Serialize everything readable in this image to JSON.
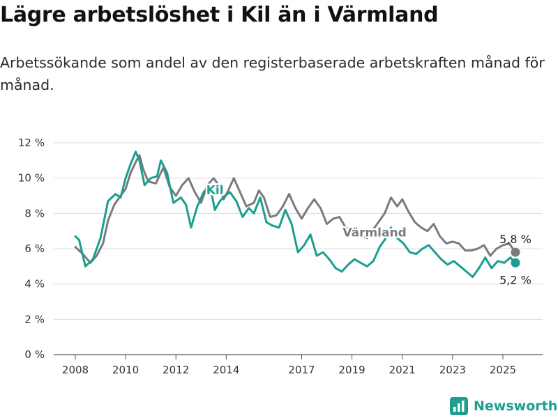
{
  "header": {
    "title": "Lägre arbetslöshet i Kil än i Värmland",
    "subtitle": "Arbetssökande som andel av den registerbaserade arbetskraften månad för månad."
  },
  "brand": {
    "name": "Newsworthy",
    "icon": "newsworthy-logo-icon",
    "color": "#1e9e8f"
  },
  "chart_data": {
    "type": "line",
    "title": "",
    "xlabel": "",
    "ylabel": "",
    "ylim": [
      0,
      12
    ],
    "yticks": [
      0,
      2,
      4,
      6,
      8,
      10,
      12
    ],
    "ytick_labels": [
      "0 %",
      "2 %",
      "4 %",
      "6 %",
      "8 %",
      "10 %",
      "12 %"
    ],
    "xlim": [
      2008.0,
      2025.75
    ],
    "xticks": [
      2008,
      2010,
      2012,
      2014,
      2017,
      2019,
      2021,
      2023,
      2025
    ],
    "xtick_labels": [
      "2008",
      "2010",
      "2012",
      "2014",
      "2017",
      "2019",
      "2021",
      "2023",
      "2025"
    ],
    "grid": "horizontal",
    "legend": "none",
    "series": [
      {
        "name": "Värmland",
        "color": "#7a7a7f",
        "label_pos": [
          2019.9,
          6.7
        ],
        "end_label": "5,8 %",
        "points": [
          [
            2008.0,
            6.1
          ],
          [
            2008.3,
            5.7
          ],
          [
            2008.6,
            5.2
          ],
          [
            2008.85,
            5.6
          ],
          [
            2009.1,
            6.3
          ],
          [
            2009.3,
            7.6
          ],
          [
            2009.55,
            8.5
          ],
          [
            2009.8,
            9.0
          ],
          [
            2010.0,
            9.4
          ],
          [
            2010.2,
            10.3
          ],
          [
            2010.4,
            10.9
          ],
          [
            2010.55,
            11.3
          ],
          [
            2010.7,
            10.5
          ],
          [
            2010.9,
            9.8
          ],
          [
            2011.2,
            9.7
          ],
          [
            2011.5,
            10.6
          ],
          [
            2011.75,
            9.5
          ],
          [
            2012.0,
            9.0
          ],
          [
            2012.25,
            9.6
          ],
          [
            2012.5,
            10.0
          ],
          [
            2012.75,
            9.2
          ],
          [
            2013.0,
            8.6
          ],
          [
            2013.25,
            9.6
          ],
          [
            2013.5,
            10.0
          ],
          [
            2013.7,
            9.6
          ],
          [
            2013.9,
            8.8
          ],
          [
            2014.05,
            9.2
          ],
          [
            2014.3,
            10.0
          ],
          [
            2014.55,
            9.2
          ],
          [
            2014.8,
            8.4
          ],
          [
            2015.1,
            8.6
          ],
          [
            2015.3,
            9.3
          ],
          [
            2015.5,
            8.9
          ],
          [
            2015.75,
            7.8
          ],
          [
            2016.0,
            7.9
          ],
          [
            2016.25,
            8.4
          ],
          [
            2016.5,
            9.1
          ],
          [
            2016.75,
            8.3
          ],
          [
            2017.0,
            7.7
          ],
          [
            2017.25,
            8.3
          ],
          [
            2017.5,
            8.8
          ],
          [
            2017.75,
            8.3
          ],
          [
            2018.0,
            7.4
          ],
          [
            2018.25,
            7.7
          ],
          [
            2018.5,
            7.8
          ],
          [
            2018.75,
            7.2
          ],
          [
            2019.2,
            6.9
          ],
          [
            2019.6,
            6.6
          ],
          [
            2020.0,
            7.4
          ],
          [
            2020.3,
            8.0
          ],
          [
            2020.55,
            8.9
          ],
          [
            2020.8,
            8.4
          ],
          [
            2021.0,
            8.8
          ],
          [
            2021.25,
            8.1
          ],
          [
            2021.5,
            7.5
          ],
          [
            2021.75,
            7.2
          ],
          [
            2022.0,
            7.0
          ],
          [
            2022.25,
            7.4
          ],
          [
            2022.5,
            6.7
          ],
          [
            2022.75,
            6.3
          ],
          [
            2023.0,
            6.4
          ],
          [
            2023.25,
            6.3
          ],
          [
            2023.5,
            5.9
          ],
          [
            2023.75,
            5.9
          ],
          [
            2024.0,
            6.0
          ],
          [
            2024.25,
            6.2
          ],
          [
            2024.5,
            5.6
          ],
          [
            2024.75,
            6.0
          ],
          [
            2025.0,
            6.2
          ],
          [
            2025.25,
            6.3
          ],
          [
            2025.5,
            5.8
          ]
        ]
      },
      {
        "name": "Kil",
        "color": "#1a9e8f",
        "label_pos": [
          2013.55,
          9.1
        ],
        "end_label": "5,2 %",
        "points": [
          [
            2008.0,
            6.7
          ],
          [
            2008.15,
            6.5
          ],
          [
            2008.4,
            5.0
          ],
          [
            2008.7,
            5.4
          ],
          [
            2009.0,
            6.6
          ],
          [
            2009.3,
            8.7
          ],
          [
            2009.6,
            9.1
          ],
          [
            2009.8,
            8.9
          ],
          [
            2010.0,
            10.0
          ],
          [
            2010.2,
            10.8
          ],
          [
            2010.4,
            11.5
          ],
          [
            2010.55,
            11.0
          ],
          [
            2010.75,
            9.6
          ],
          [
            2011.0,
            10.0
          ],
          [
            2011.25,
            10.1
          ],
          [
            2011.4,
            11.0
          ],
          [
            2011.65,
            10.3
          ],
          [
            2011.9,
            8.6
          ],
          [
            2012.2,
            8.9
          ],
          [
            2012.4,
            8.5
          ],
          [
            2012.6,
            7.2
          ],
          [
            2012.85,
            8.4
          ],
          [
            2013.1,
            9.2
          ],
          [
            2013.35,
            9.6
          ],
          [
            2013.55,
            8.2
          ],
          [
            2013.75,
            8.7
          ],
          [
            2013.95,
            9.0
          ],
          [
            2014.15,
            9.2
          ],
          [
            2014.4,
            8.7
          ],
          [
            2014.65,
            7.8
          ],
          [
            2014.9,
            8.3
          ],
          [
            2015.1,
            8.0
          ],
          [
            2015.35,
            8.9
          ],
          [
            2015.6,
            7.5
          ],
          [
            2015.85,
            7.3
          ],
          [
            2016.1,
            7.2
          ],
          [
            2016.35,
            8.2
          ],
          [
            2016.6,
            7.4
          ],
          [
            2016.85,
            5.8
          ],
          [
            2017.1,
            6.2
          ],
          [
            2017.35,
            6.8
          ],
          [
            2017.6,
            5.6
          ],
          [
            2017.85,
            5.8
          ],
          [
            2018.1,
            5.4
          ],
          [
            2018.35,
            4.9
          ],
          [
            2018.6,
            4.7
          ],
          [
            2018.85,
            5.1
          ],
          [
            2019.1,
            5.4
          ],
          [
            2019.35,
            5.2
          ],
          [
            2019.6,
            5.0
          ],
          [
            2019.85,
            5.3
          ],
          [
            2020.1,
            6.1
          ],
          [
            2020.3,
            6.5
          ],
          [
            2020.55,
            7.2
          ],
          [
            2020.8,
            6.6
          ],
          [
            2021.05,
            6.3
          ],
          [
            2021.3,
            5.8
          ],
          [
            2021.55,
            5.7
          ],
          [
            2021.8,
            6.0
          ],
          [
            2022.05,
            6.2
          ],
          [
            2022.3,
            5.8
          ],
          [
            2022.55,
            5.4
          ],
          [
            2022.8,
            5.1
          ],
          [
            2023.05,
            5.3
          ],
          [
            2023.3,
            5.0
          ],
          [
            2023.55,
            4.7
          ],
          [
            2023.8,
            4.4
          ],
          [
            2024.05,
            4.9
          ],
          [
            2024.3,
            5.5
          ],
          [
            2024.55,
            4.9
          ],
          [
            2024.8,
            5.3
          ],
          [
            2025.05,
            5.2
          ],
          [
            2025.3,
            5.5
          ],
          [
            2025.5,
            5.2
          ]
        ]
      }
    ]
  }
}
